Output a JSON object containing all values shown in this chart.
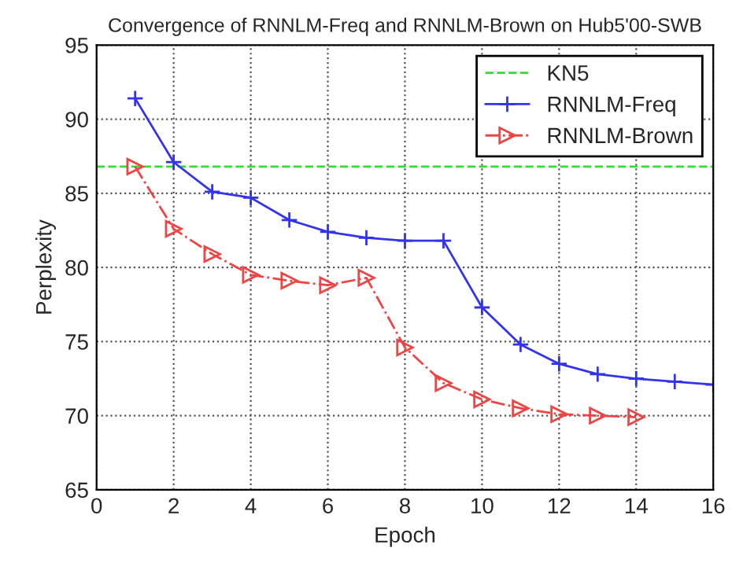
{
  "chart_data": {
    "type": "line",
    "title": "Convergence of RNNLM-Freq and RNNLM-Brown on Hub5'00-SWB",
    "xlabel": "Epoch",
    "ylabel": "Perplexity",
    "xlim": [
      0,
      16
    ],
    "xticks": [
      0,
      2,
      4,
      6,
      8,
      10,
      12,
      14,
      16
    ],
    "ylim": [
      65,
      95
    ],
    "yticks": [
      65,
      70,
      75,
      80,
      85,
      90,
      95
    ],
    "grid": true,
    "legend": "top right",
    "ref_lines": [
      {
        "axis": "y",
        "value": 86.8,
        "label": "KN5",
        "color": "#33dd33",
        "line_style": "dashed"
      }
    ],
    "series": [
      {
        "name": "RNNLM-Freq",
        "color": "#3333ee",
        "marker": "cross",
        "line_style": "solid",
        "x": [
          1,
          2,
          3,
          4,
          5,
          6,
          7,
          8,
          9,
          10,
          11,
          12,
          13,
          14,
          15,
          16
        ],
        "values": [
          91.4,
          87.1,
          85.1,
          84.7,
          83.2,
          82.4,
          82.0,
          81.8,
          81.8,
          77.3,
          74.8,
          73.5,
          72.8,
          72.5,
          72.3,
          72.1
        ]
      },
      {
        "name": "RNNLM-Brown",
        "color": "#ee4444",
        "marker": "triangle",
        "line_style": "dashdot",
        "x": [
          1,
          2,
          3,
          4,
          5,
          6,
          7,
          8,
          9,
          10,
          11,
          12,
          13,
          14
        ],
        "values": [
          86.8,
          82.6,
          80.9,
          79.5,
          79.1,
          78.8,
          79.3,
          74.6,
          72.2,
          71.1,
          70.5,
          70.1,
          70.0,
          69.9
        ]
      }
    ]
  }
}
